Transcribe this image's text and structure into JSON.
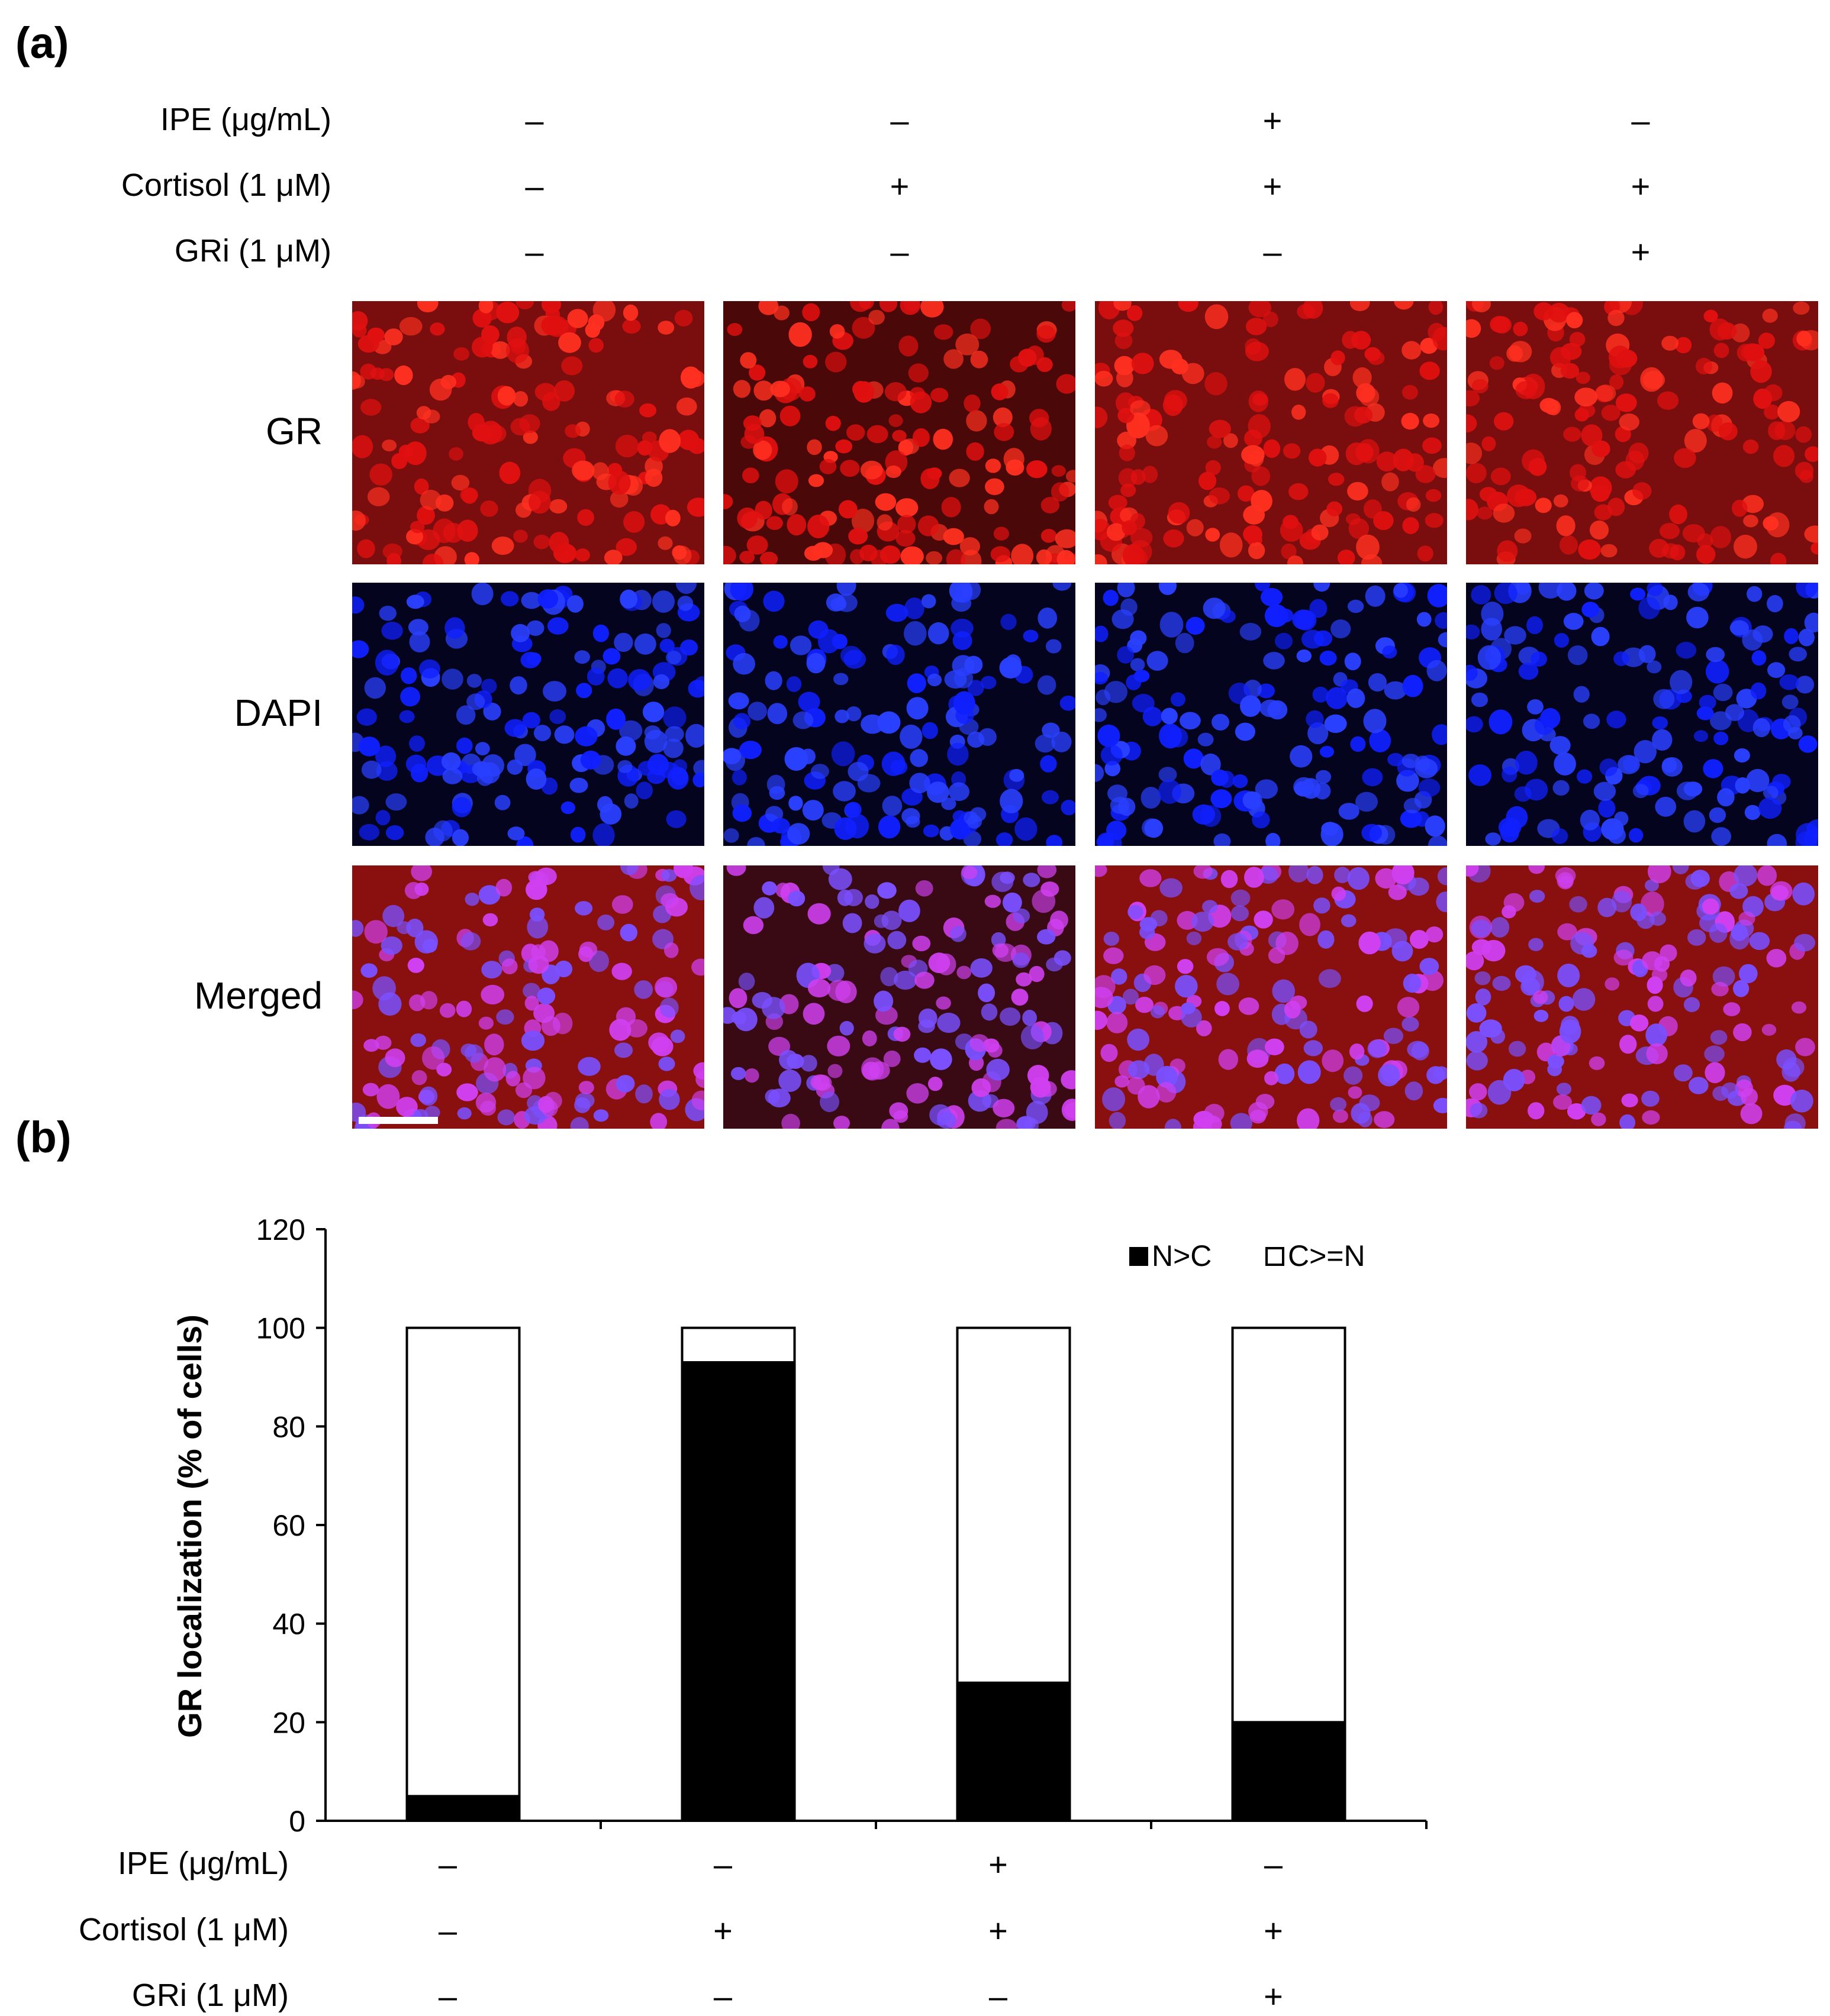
{
  "panel_a": {
    "label": "(a)",
    "conditions": [
      {
        "label": "IPE (μg/mL)",
        "values": [
          "–",
          "–",
          "+",
          "–"
        ]
      },
      {
        "label": "Cortisol (1 μM)",
        "values": [
          "–",
          "+",
          "+",
          "+"
        ]
      },
      {
        "label": "GRi (1 μM)",
        "values": [
          "–",
          "–",
          "–",
          "+"
        ]
      }
    ],
    "rows": [
      {
        "label": "GR",
        "stain": "red"
      },
      {
        "label": "DAPI",
        "stain": "blue"
      },
      {
        "label": "Merged",
        "stain": "merged"
      }
    ],
    "colors": {
      "gr": "#e01010",
      "dapi": "#1020ff",
      "merged_cell": "#d040f0"
    }
  },
  "panel_b": {
    "label": "(b)",
    "conditions": [
      {
        "label": "IPE (μg/mL)",
        "values": [
          "–",
          "–",
          "+",
          "–"
        ]
      },
      {
        "label": "Cortisol (1 μM)",
        "values": [
          "–",
          "+",
          "+",
          "+"
        ]
      },
      {
        "label": "GRi (1 μM)",
        "values": [
          "–",
          "–",
          "–",
          "+"
        ]
      }
    ]
  },
  "chart_data": {
    "type": "bar",
    "stacked": true,
    "categories": [
      "1",
      "2",
      "3",
      "4"
    ],
    "ylabel": "GR localization (% of cells)",
    "ylim": [
      0,
      120
    ],
    "yticks": [
      0,
      20,
      40,
      60,
      80,
      100,
      120
    ],
    "series": [
      {
        "name": "N>C",
        "values": [
          5,
          93,
          28,
          20
        ],
        "color": "#000000"
      },
      {
        "name": "C>=N",
        "values": [
          95,
          7,
          72,
          80
        ],
        "color": "#ffffff"
      }
    ],
    "legend_position": "top-right"
  }
}
